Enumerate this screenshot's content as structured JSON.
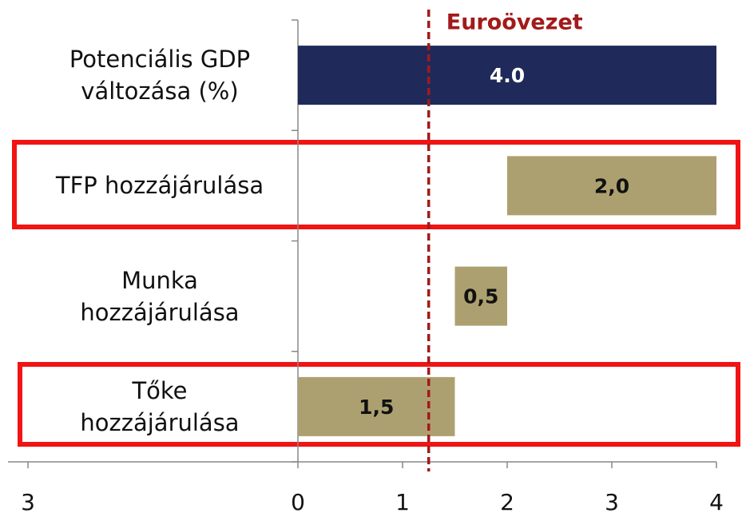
{
  "chart_data": {
    "type": "waterfall",
    "categories": [
      "Potenciális GDP\nváltozása (%)",
      "TFP hozzájárulása",
      "Munka\nhozzájárulása",
      "Tőke\nhozzájárulása"
    ],
    "values": [
      4.0,
      2.0,
      0.5,
      1.5
    ],
    "value_labels": [
      "4.0",
      "2,0",
      "0,5",
      "1,5"
    ],
    "total_color": "#1f2a5a",
    "color": "#ada070",
    "xlim": [
      -2.85,
      4.25
    ],
    "xticks": [
      0,
      1,
      2,
      3,
      4
    ],
    "stray_tick_label": "3",
    "reference": {
      "value": 1.25,
      "label": "Euroövezet",
      "color": "#a31a1a"
    }
  }
}
